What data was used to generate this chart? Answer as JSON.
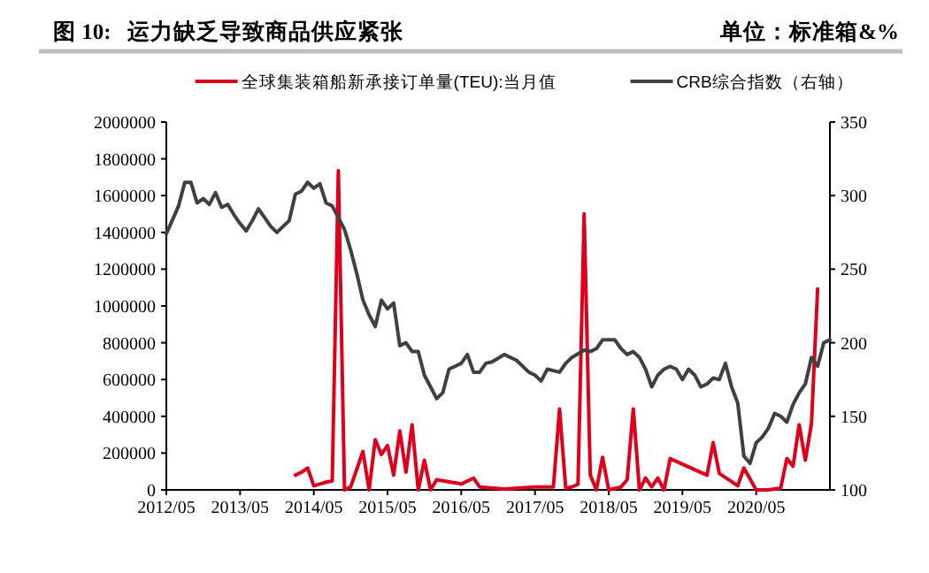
{
  "chart_data": {
    "type": "line",
    "title": "图 10:   运力缺乏导致商品供应紧张",
    "annotations": [
      "单位：标准箱&%"
    ],
    "legend": "top",
    "xlim": [
      "2012-05",
      "2021-05"
    ],
    "xticks": [
      {
        "value": "2012-05",
        "label": "2012/05"
      },
      {
        "value": "2013-05",
        "label": "2013/05"
      },
      {
        "value": "2014-05",
        "label": "2014/05"
      },
      {
        "value": "2015-05",
        "label": "2015/05"
      },
      {
        "value": "2016-05",
        "label": "2016/05"
      },
      {
        "value": "2017-05",
        "label": "2017/05"
      },
      {
        "value": "2018-05",
        "label": "2018/05"
      },
      {
        "value": "2019-05",
        "label": "2019/05"
      },
      {
        "value": "2020-05",
        "label": "2020/05"
      }
    ],
    "ylim": [
      0,
      2000000
    ],
    "yticks": [
      0,
      200000,
      400000,
      600000,
      800000,
      1000000,
      1200000,
      1400000,
      1600000,
      1800000,
      2000000
    ],
    "y2lim": [
      100,
      350
    ],
    "y2ticks": [
      100,
      150,
      200,
      250,
      300,
      350
    ],
    "series": [
      {
        "name": "全球集装箱船新承接订单量(TEU):当月值",
        "color": "#e0001b",
        "x": [
          "2014-02",
          "2014-03",
          "2014-04",
          "2014-05",
          "2014-06",
          "2014-07",
          "2014-08",
          "2014-09",
          "2014-10",
          "2014-11",
          "2015-01",
          "2015-02",
          "2015-03",
          "2015-04",
          "2015-05",
          "2015-06",
          "2015-07",
          "2015-08",
          "2015-09",
          "2015-10",
          "2015-11",
          "2015-12",
          "2016-01",
          "2016-05",
          "2016-07",
          "2016-08",
          "2016-12",
          "2017-05",
          "2017-08",
          "2017-09",
          "2017-10",
          "2017-11",
          "2017-12",
          "2018-01",
          "2018-02",
          "2018-03",
          "2018-04",
          "2018-05",
          "2018-07",
          "2018-08",
          "2018-09",
          "2018-10",
          "2018-11",
          "2018-12",
          "2019-01",
          "2019-02",
          "2019-03",
          "2019-09",
          "2019-10",
          "2019-11",
          "2020-02",
          "2020-03",
          "2020-05",
          "2020-07",
          "2020-09",
          "2020-10",
          "2020-11",
          "2020-12",
          "2021-01",
          "2021-02",
          "2021-03"
        ],
        "values": [
          80000,
          96000,
          119000,
          22000,
          32000,
          42000,
          48000,
          1736000,
          0,
          16000,
          209000,
          0,
          273000,
          193000,
          241000,
          80000,
          321000,
          96000,
          354000,
          0,
          161000,
          0,
          55000,
          32000,
          64000,
          16000,
          5000,
          16000,
          16000,
          440000,
          10000,
          16000,
          30000,
          1501000,
          80000,
          0,
          177000,
          0,
          16000,
          55000,
          440000,
          0,
          64000,
          16000,
          64000,
          0,
          170000,
          80000,
          257000,
          90000,
          22000,
          119000,
          0,
          0,
          10000,
          170000,
          129000,
          354000,
          161000,
          360000,
          1093000
        ]
      },
      {
        "name": "CRB综合指数（右轴）",
        "color": "#404040",
        "axis": "y2",
        "x": [
          "2012-05",
          "2012-07",
          "2012-08",
          "2012-09",
          "2012-10",
          "2012-11",
          "2012-12",
          "2013-01",
          "2013-02",
          "2013-03",
          "2013-04",
          "2013-05",
          "2013-06",
          "2013-07",
          "2013-08",
          "2013-09",
          "2013-10",
          "2013-11",
          "2013-12",
          "2014-01",
          "2014-02",
          "2014-03",
          "2014-04",
          "2014-05",
          "2014-06",
          "2014-07",
          "2014-08",
          "2014-09",
          "2014-10",
          "2014-11",
          "2014-12",
          "2015-01",
          "2015-02",
          "2015-03",
          "2015-04",
          "2015-05",
          "2015-06",
          "2015-07",
          "2015-08",
          "2015-09",
          "2015-10",
          "2015-11",
          "2015-12",
          "2016-01",
          "2016-02",
          "2016-03",
          "2016-04",
          "2016-05",
          "2016-06",
          "2016-07",
          "2016-08",
          "2016-09",
          "2016-10",
          "2016-12",
          "2017-02",
          "2017-04",
          "2017-05",
          "2017-06",
          "2017-07",
          "2017-09",
          "2017-10",
          "2017-11",
          "2018-01",
          "2018-02",
          "2018-03",
          "2018-04",
          "2018-06",
          "2018-07",
          "2018-08",
          "2018-09",
          "2018-10",
          "2018-11",
          "2018-12",
          "2019-01",
          "2019-02",
          "2019-03",
          "2019-04",
          "2019-05",
          "2019-06",
          "2019-07",
          "2019-08",
          "2019-09",
          "2019-10",
          "2019-11",
          "2019-12",
          "2020-01",
          "2020-02",
          "2020-03",
          "2020-04",
          "2020-05",
          "2020-06",
          "2020-07",
          "2020-08",
          "2020-09",
          "2020-10",
          "2020-11",
          "2020-12",
          "2021-01",
          "2021-02",
          "2021-03",
          "2021-04",
          "2021-05"
        ],
        "values": [
          274,
          293,
          309,
          309,
          295,
          298,
          294,
          302,
          292,
          294,
          287,
          281,
          276,
          283,
          291,
          285,
          279,
          275,
          279,
          283,
          301,
          303,
          309,
          305,
          308,
          295,
          293,
          285,
          277,
          263,
          247,
          229,
          219,
          211,
          229,
          223,
          227,
          198,
          200,
          194,
          194,
          178,
          170,
          162,
          166,
          182,
          184,
          186,
          192,
          180,
          180,
          186,
          187,
          192,
          188,
          180,
          178,
          174,
          182,
          180,
          186,
          190,
          195,
          194,
          196,
          202,
          202,
          196,
          192,
          194,
          190,
          182,
          170,
          178,
          182,
          184,
          182,
          175,
          182,
          178,
          170,
          172,
          176,
          175,
          186,
          170,
          159,
          123,
          118,
          132,
          136,
          142,
          152,
          150,
          146,
          158,
          166,
          172,
          190,
          184,
          200,
          202
        ]
      }
    ]
  }
}
